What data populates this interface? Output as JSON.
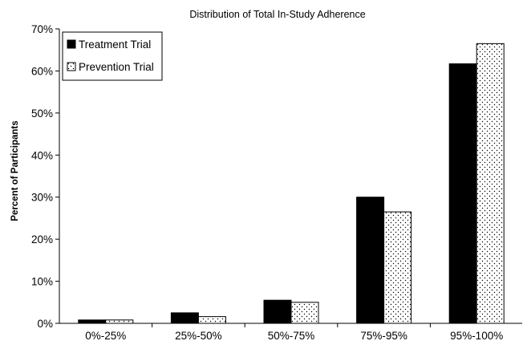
{
  "chart_data": {
    "type": "bar",
    "title": "Distribution of Total In-Study Adherence",
    "xlabel": "",
    "ylabel": "Percent of Participants",
    "ylim": [
      0,
      70
    ],
    "ytick_step": 10,
    "ytick_format": "percent",
    "grid": false,
    "legend_position": "top-left",
    "categories": [
      "0%-25%",
      "25%-50%",
      "50%-75%",
      "75%-95%",
      "95%-100%"
    ],
    "series": [
      {
        "name": "Treatment Trial",
        "fill": "solid",
        "color": "#000000",
        "values": [
          0.8,
          2.5,
          5.5,
          30.0,
          61.7
        ]
      },
      {
        "name": "Prevention Trial",
        "fill": "dotted",
        "color": "#ffffff",
        "values": [
          0.8,
          1.6,
          5.0,
          26.5,
          66.5
        ]
      }
    ]
  }
}
